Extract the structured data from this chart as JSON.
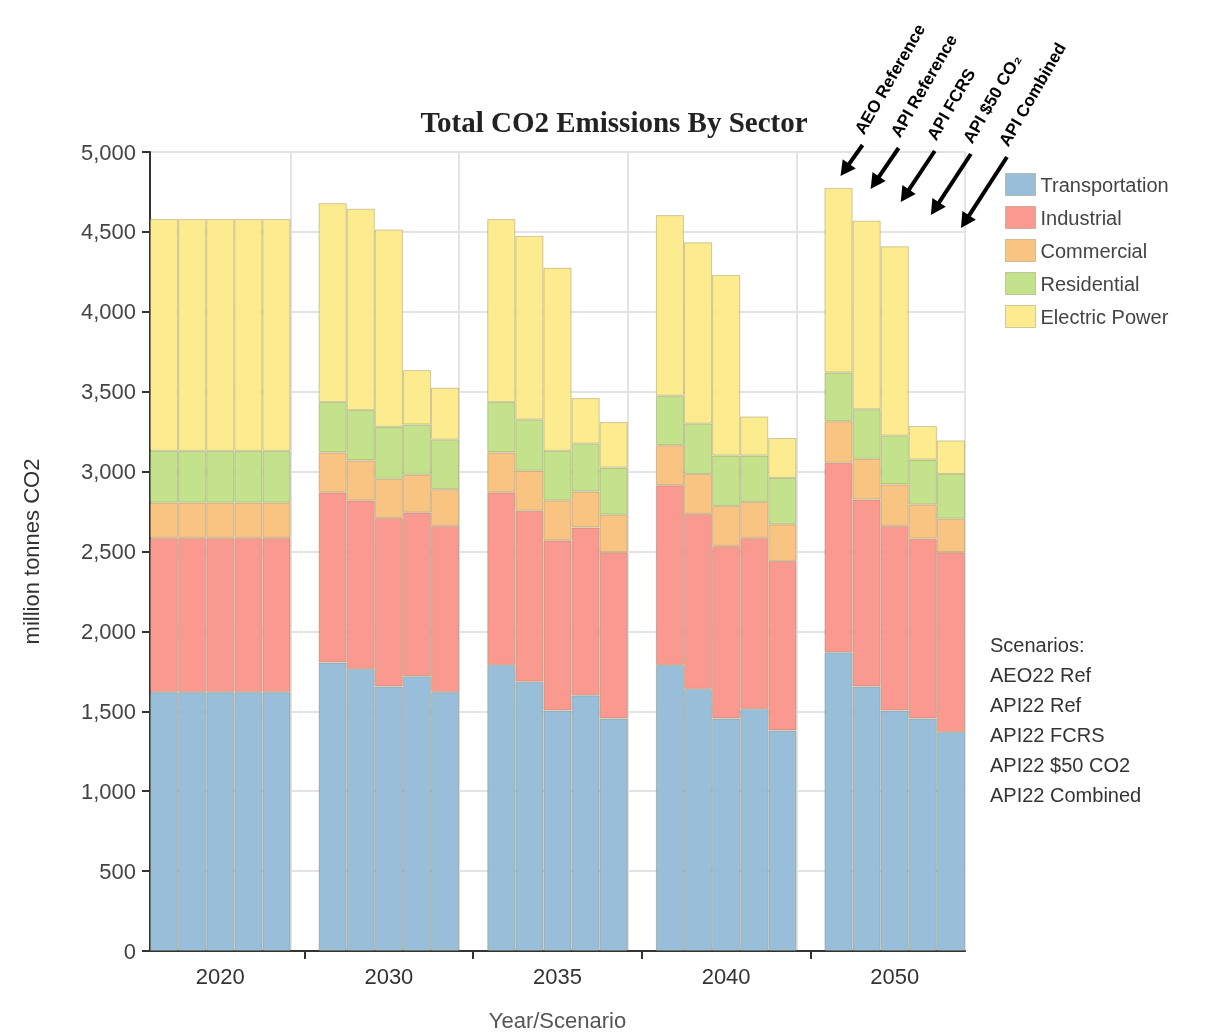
{
  "chart_data": {
    "type": "bar",
    "title": "Total CO2 Emissions By Sector",
    "xlabel": "Year/Scenario",
    "ylabel": "million tonnes CO2",
    "categories": [
      null,
      null,
      "2020",
      null,
      null,
      null,
      null,
      null,
      "2030",
      null,
      null,
      null,
      null,
      null,
      "2035",
      null,
      null,
      null,
      null,
      null,
      "2040",
      null,
      null,
      null,
      null,
      null,
      "2050",
      null,
      null
    ],
    "series": [
      {
        "name": "Transportation",
        "color": "#93bad8",
        "values": [
          1620,
          1620,
          1620,
          1620,
          1620,
          null,
          1805,
          1765,
          1655,
          1720,
          1620,
          null,
          1790,
          1685,
          1505,
          1600,
          1455,
          null,
          1790,
          1640,
          1455,
          1515,
          1380,
          null,
          1870,
          1655,
          1505,
          1455,
          1370
        ]
      },
      {
        "name": "Industrial",
        "color": "#f99489",
        "values": [
          965,
          965,
          965,
          965,
          965,
          null,
          1065,
          1055,
          1055,
          1025,
          1040,
          null,
          1080,
          1070,
          1065,
          1050,
          1040,
          null,
          1125,
          1095,
          1080,
          1070,
          1060,
          null,
          1185,
          1170,
          1155,
          1125,
          1125
        ]
      },
      {
        "name": "Commercial",
        "color": "#f9c07a",
        "values": [
          220,
          220,
          220,
          220,
          220,
          null,
          250,
          250,
          245,
          235,
          230,
          null,
          250,
          250,
          250,
          225,
          235,
          null,
          250,
          250,
          250,
          225,
          230,
          null,
          260,
          255,
          260,
          215,
          210
        ]
      },
      {
        "name": "Residential",
        "color": "#c1e086",
        "values": [
          325,
          325,
          325,
          325,
          325,
          null,
          315,
          315,
          325,
          315,
          310,
          null,
          315,
          320,
          310,
          300,
          295,
          null,
          310,
          315,
          315,
          290,
          290,
          null,
          305,
          310,
          305,
          280,
          280
        ]
      },
      {
        "name": "Electric Power",
        "color": "#fdea8a",
        "values": [
          1450,
          1450,
          1450,
          1450,
          1450,
          null,
          1245,
          1260,
          1235,
          340,
          325,
          null,
          1145,
          1150,
          1145,
          285,
          285,
          null,
          1130,
          1135,
          1130,
          245,
          250,
          null,
          1155,
          1180,
          1185,
          210,
          210
        ]
      }
    ],
    "stacked": true,
    "ylim": [
      0,
      5000
    ],
    "yticks": [
      0,
      500,
      {
        "value": 1000,
        "label": "1,000"
      },
      {
        "value": 1500,
        "label": "1,500"
      },
      {
        "value": 2000,
        "label": "2,000"
      },
      {
        "value": 2500,
        "label": "2,500"
      },
      {
        "value": 3000,
        "label": "3,000"
      },
      {
        "value": 3500,
        "label": "3,500"
      },
      {
        "value": 4000,
        "label": "4,000"
      },
      {
        "value": 4500,
        "label": "4,500"
      },
      {
        "value": 5000,
        "label": "5,000"
      }
    ],
    "grid": true,
    "legend": "top right",
    "annotations": [
      "AEO Reference",
      "API Reference",
      "API FCRS",
      "API $50 CO₂",
      "API Combined",
      "Scenarios:\nAEO22 Ref\nAPI22 Ref\nAPI22 FCRS\nAPI22 $50 CO2\nAPI22 Combined"
    ]
  }
}
